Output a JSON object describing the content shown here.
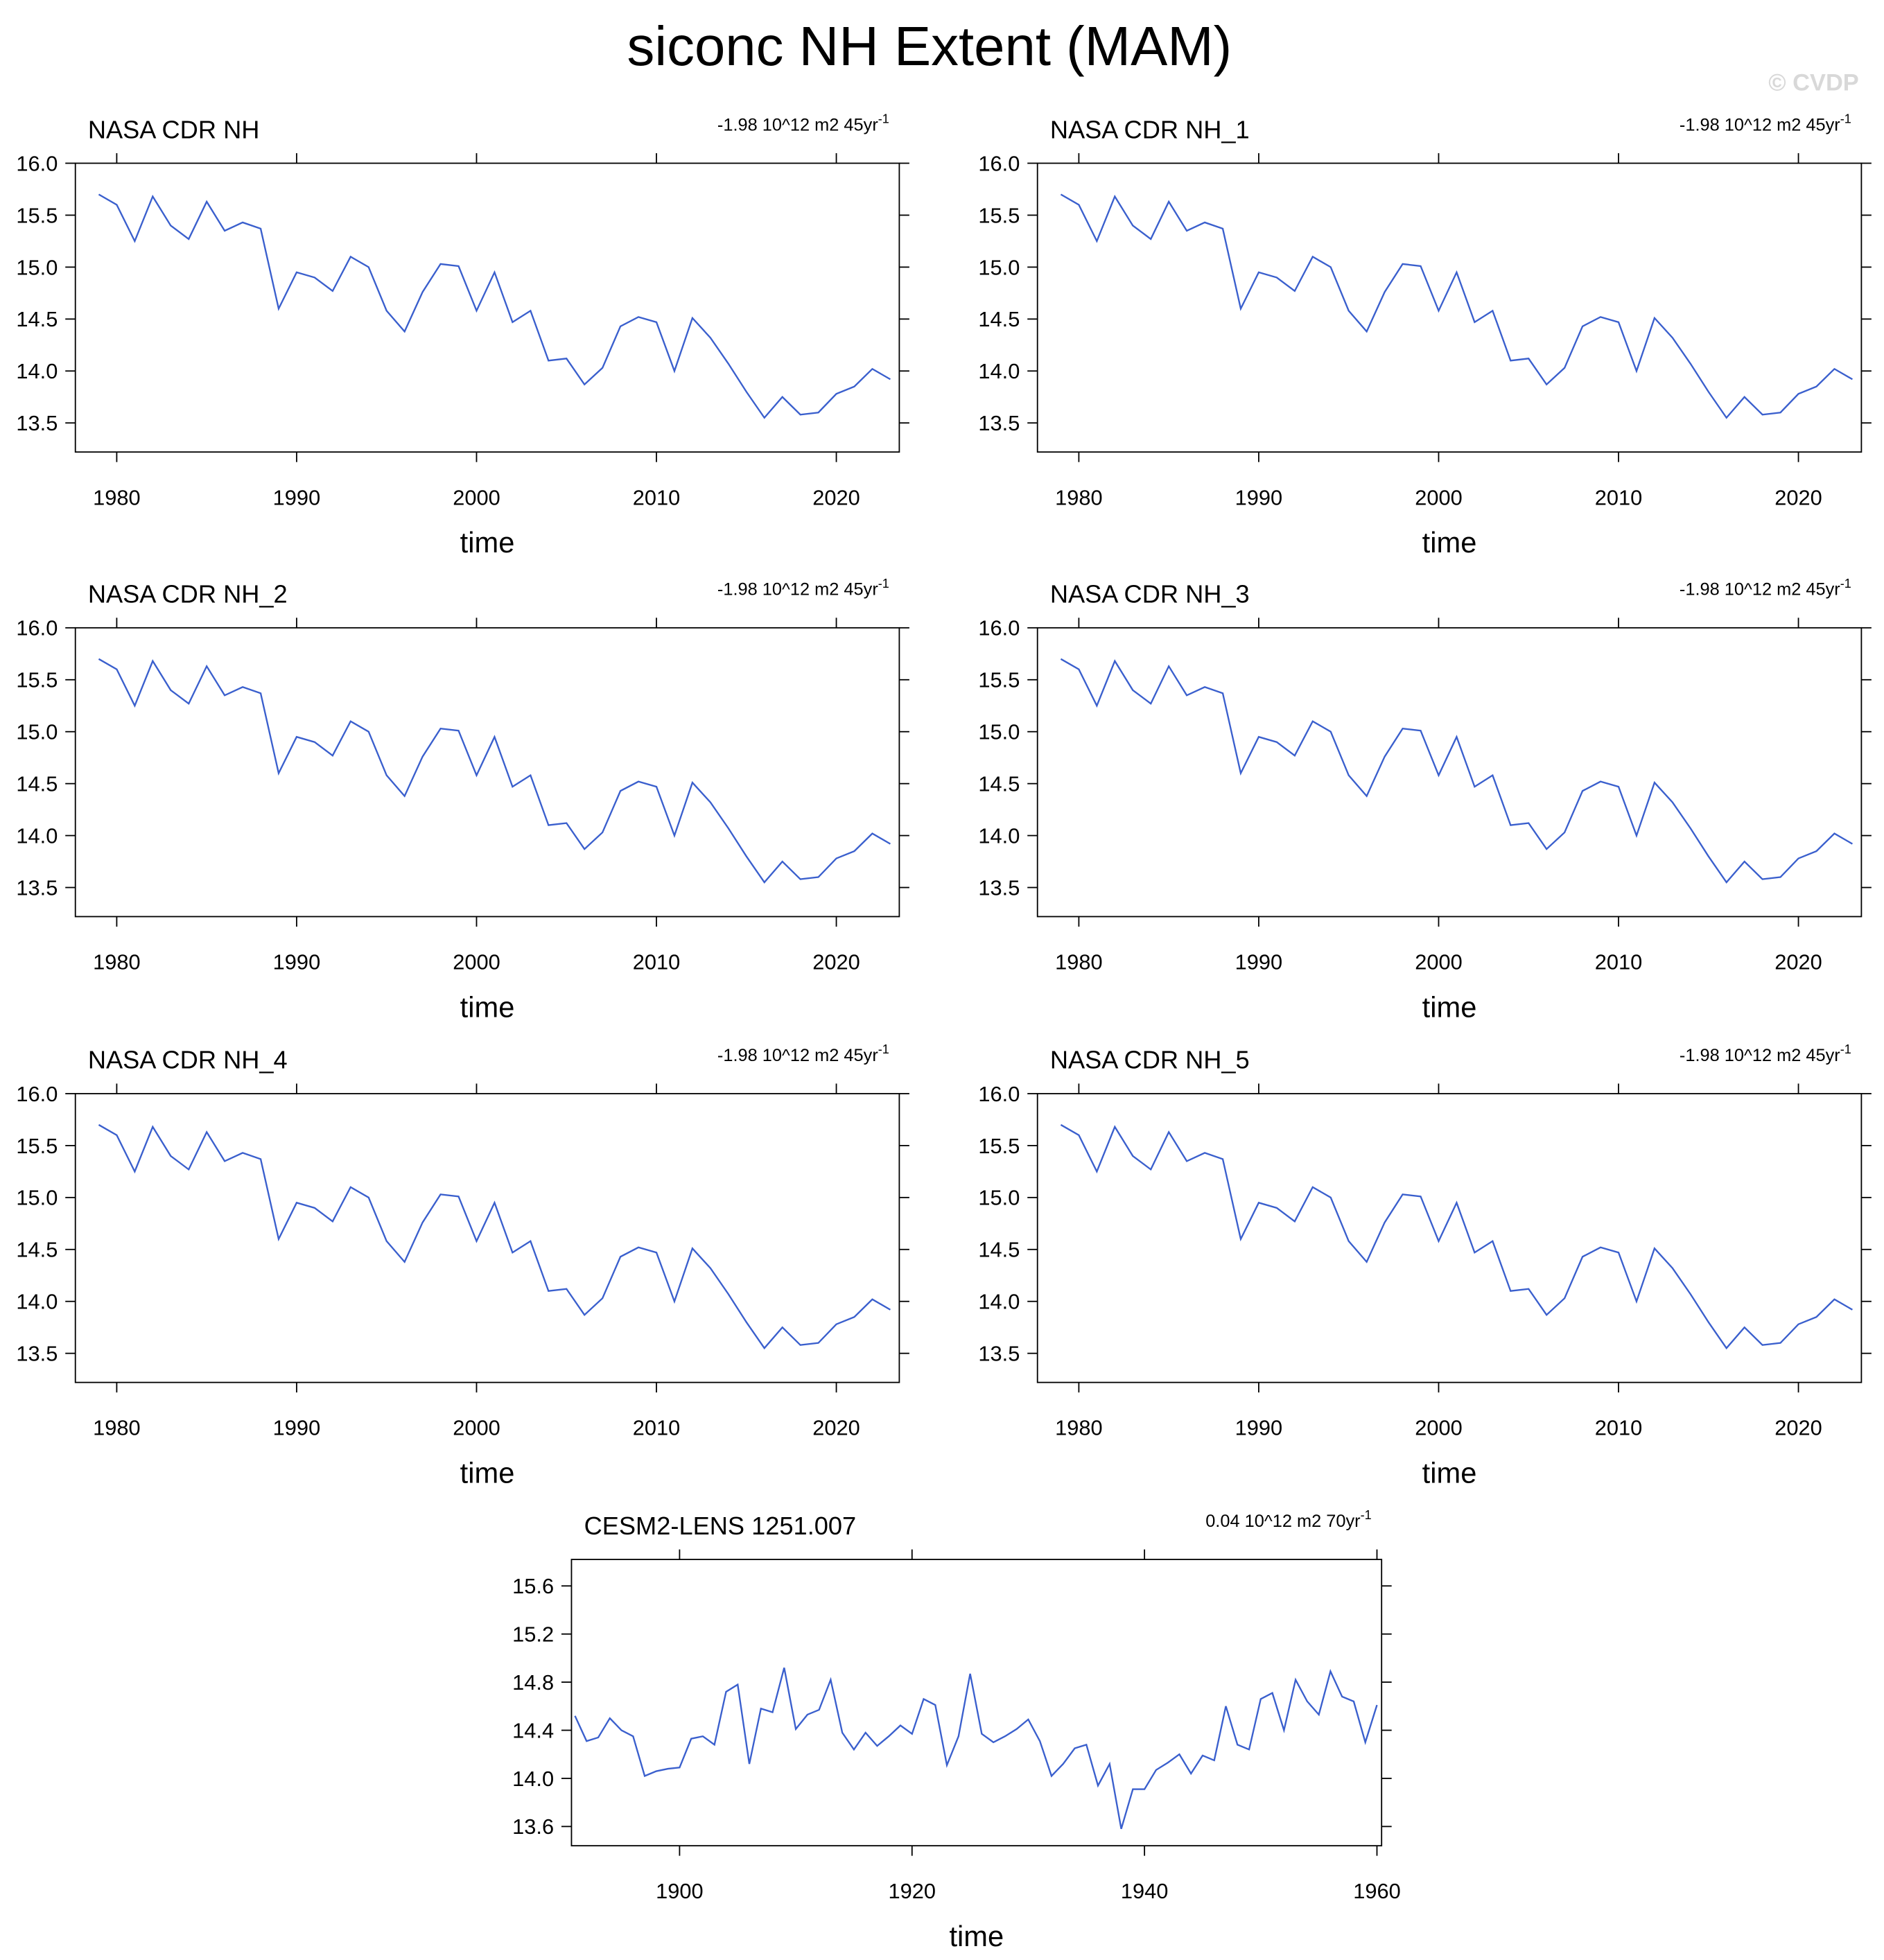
{
  "title": "siconc NH Extent (MAM)",
  "watermark": "© CVDP",
  "chart_data": [
    {
      "type": "line",
      "title": "NASA CDR NH",
      "annotation": "-1.98 10^12 m2 45yr",
      "annotation_sup": "-1",
      "x_label": "time",
      "color": "#3a5fcd",
      "x": [
        1979,
        1980,
        1981,
        1982,
        1983,
        1984,
        1985,
        1986,
        1987,
        1988,
        1989,
        1990,
        1991,
        1992,
        1993,
        1994,
        1995,
        1996,
        1997,
        1998,
        1999,
        2000,
        2001,
        2002,
        2003,
        2004,
        2005,
        2006,
        2007,
        2008,
        2009,
        2010,
        2011,
        2012,
        2013,
        2014,
        2015,
        2016,
        2017,
        2018,
        2019,
        2020,
        2021,
        2022,
        2023
      ],
      "values": [
        15.7,
        15.6,
        15.25,
        15.68,
        15.4,
        15.27,
        15.63,
        15.35,
        15.43,
        15.37,
        14.6,
        14.95,
        14.9,
        14.77,
        15.1,
        15.0,
        14.58,
        14.38,
        14.76,
        15.03,
        15.01,
        14.58,
        14.95,
        14.47,
        14.58,
        14.1,
        14.12,
        13.87,
        14.03,
        14.43,
        14.52,
        14.47,
        14.0,
        14.51,
        14.32,
        14.07,
        13.8,
        13.55,
        13.75,
        13.58,
        13.6,
        13.78,
        13.85,
        14.02,
        13.92
      ],
      "xlim": [
        1977.7,
        2023.5
      ],
      "xticks": [
        1980,
        1990,
        2000,
        2010,
        2020
      ],
      "ylim": [
        13.22,
        16.0
      ],
      "yticks": [
        13.5,
        {
          "value": 14,
          "label": "14.0"
        },
        14.5,
        {
          "value": 15,
          "label": "15.0"
        },
        15.5,
        {
          "value": 16,
          "label": "16.0"
        }
      ]
    },
    {
      "type": "line",
      "title": "NASA CDR NH_1",
      "annotation": "-1.98 10^12 m2 45yr",
      "annotation_sup": "-1",
      "x_label": "time",
      "color": "#3a5fcd",
      "x": [
        1979,
        1980,
        1981,
        1982,
        1983,
        1984,
        1985,
        1986,
        1987,
        1988,
        1989,
        1990,
        1991,
        1992,
        1993,
        1994,
        1995,
        1996,
        1997,
        1998,
        1999,
        2000,
        2001,
        2002,
        2003,
        2004,
        2005,
        2006,
        2007,
        2008,
        2009,
        2010,
        2011,
        2012,
        2013,
        2014,
        2015,
        2016,
        2017,
        2018,
        2019,
        2020,
        2021,
        2022,
        2023
      ],
      "values": [
        15.7,
        15.6,
        15.25,
        15.68,
        15.4,
        15.27,
        15.63,
        15.35,
        15.43,
        15.37,
        14.6,
        14.95,
        14.9,
        14.77,
        15.1,
        15.0,
        14.58,
        14.38,
        14.76,
        15.03,
        15.01,
        14.58,
        14.95,
        14.47,
        14.58,
        14.1,
        14.12,
        13.87,
        14.03,
        14.43,
        14.52,
        14.47,
        14.0,
        14.51,
        14.32,
        14.07,
        13.8,
        13.55,
        13.75,
        13.58,
        13.6,
        13.78,
        13.85,
        14.02,
        13.92
      ],
      "xlim": [
        1977.7,
        2023.5
      ],
      "xticks": [
        1980,
        1990,
        2000,
        2010,
        2020
      ],
      "ylim": [
        13.22,
        16.0
      ],
      "yticks": [
        13.5,
        {
          "value": 14,
          "label": "14.0"
        },
        14.5,
        {
          "value": 15,
          "label": "15.0"
        },
        15.5,
        {
          "value": 16,
          "label": "16.0"
        }
      ]
    },
    {
      "type": "line",
      "title": "NASA CDR NH_2",
      "annotation": "-1.98 10^12 m2 45yr",
      "annotation_sup": "-1",
      "x_label": "time",
      "color": "#3a5fcd",
      "x": [
        1979,
        1980,
        1981,
        1982,
        1983,
        1984,
        1985,
        1986,
        1987,
        1988,
        1989,
        1990,
        1991,
        1992,
        1993,
        1994,
        1995,
        1996,
        1997,
        1998,
        1999,
        2000,
        2001,
        2002,
        2003,
        2004,
        2005,
        2006,
        2007,
        2008,
        2009,
        2010,
        2011,
        2012,
        2013,
        2014,
        2015,
        2016,
        2017,
        2018,
        2019,
        2020,
        2021,
        2022,
        2023
      ],
      "values": [
        15.7,
        15.6,
        15.25,
        15.68,
        15.4,
        15.27,
        15.63,
        15.35,
        15.43,
        15.37,
        14.6,
        14.95,
        14.9,
        14.77,
        15.1,
        15.0,
        14.58,
        14.38,
        14.76,
        15.03,
        15.01,
        14.58,
        14.95,
        14.47,
        14.58,
        14.1,
        14.12,
        13.87,
        14.03,
        14.43,
        14.52,
        14.47,
        14.0,
        14.51,
        14.32,
        14.07,
        13.8,
        13.55,
        13.75,
        13.58,
        13.6,
        13.78,
        13.85,
        14.02,
        13.92
      ],
      "xlim": [
        1977.7,
        2023.5
      ],
      "xticks": [
        1980,
        1990,
        2000,
        2010,
        2020
      ],
      "ylim": [
        13.22,
        16.0
      ],
      "yticks": [
        13.5,
        {
          "value": 14,
          "label": "14.0"
        },
        14.5,
        {
          "value": 15,
          "label": "15.0"
        },
        15.5,
        {
          "value": 16,
          "label": "16.0"
        }
      ]
    },
    {
      "type": "line",
      "title": "NASA CDR NH_3",
      "annotation": "-1.98 10^12 m2 45yr",
      "annotation_sup": "-1",
      "x_label": "time",
      "color": "#3a5fcd",
      "x": [
        1979,
        1980,
        1981,
        1982,
        1983,
        1984,
        1985,
        1986,
        1987,
        1988,
        1989,
        1990,
        1991,
        1992,
        1993,
        1994,
        1995,
        1996,
        1997,
        1998,
        1999,
        2000,
        2001,
        2002,
        2003,
        2004,
        2005,
        2006,
        2007,
        2008,
        2009,
        2010,
        2011,
        2012,
        2013,
        2014,
        2015,
        2016,
        2017,
        2018,
        2019,
        2020,
        2021,
        2022,
        2023
      ],
      "values": [
        15.7,
        15.6,
        15.25,
        15.68,
        15.4,
        15.27,
        15.63,
        15.35,
        15.43,
        15.37,
        14.6,
        14.95,
        14.9,
        14.77,
        15.1,
        15.0,
        14.58,
        14.38,
        14.76,
        15.03,
        15.01,
        14.58,
        14.95,
        14.47,
        14.58,
        14.1,
        14.12,
        13.87,
        14.03,
        14.43,
        14.52,
        14.47,
        14.0,
        14.51,
        14.32,
        14.07,
        13.8,
        13.55,
        13.75,
        13.58,
        13.6,
        13.78,
        13.85,
        14.02,
        13.92
      ],
      "xlim": [
        1977.7,
        2023.5
      ],
      "xticks": [
        1980,
        1990,
        2000,
        2010,
        2020
      ],
      "ylim": [
        13.22,
        16.0
      ],
      "yticks": [
        13.5,
        {
          "value": 14,
          "label": "14.0"
        },
        14.5,
        {
          "value": 15,
          "label": "15.0"
        },
        15.5,
        {
          "value": 16,
          "label": "16.0"
        }
      ]
    },
    {
      "type": "line",
      "title": "NASA CDR NH_4",
      "annotation": "-1.98 10^12 m2 45yr",
      "annotation_sup": "-1",
      "x_label": "time",
      "color": "#3a5fcd",
      "x": [
        1979,
        1980,
        1981,
        1982,
        1983,
        1984,
        1985,
        1986,
        1987,
        1988,
        1989,
        1990,
        1991,
        1992,
        1993,
        1994,
        1995,
        1996,
        1997,
        1998,
        1999,
        2000,
        2001,
        2002,
        2003,
        2004,
        2005,
        2006,
        2007,
        2008,
        2009,
        2010,
        2011,
        2012,
        2013,
        2014,
        2015,
        2016,
        2017,
        2018,
        2019,
        2020,
        2021,
        2022,
        2023
      ],
      "values": [
        15.7,
        15.6,
        15.25,
        15.68,
        15.4,
        15.27,
        15.63,
        15.35,
        15.43,
        15.37,
        14.6,
        14.95,
        14.9,
        14.77,
        15.1,
        15.0,
        14.58,
        14.38,
        14.76,
        15.03,
        15.01,
        14.58,
        14.95,
        14.47,
        14.58,
        14.1,
        14.12,
        13.87,
        14.03,
        14.43,
        14.52,
        14.47,
        14.0,
        14.51,
        14.32,
        14.07,
        13.8,
        13.55,
        13.75,
        13.58,
        13.6,
        13.78,
        13.85,
        14.02,
        13.92
      ],
      "xlim": [
        1977.7,
        2023.5
      ],
      "xticks": [
        1980,
        1990,
        2000,
        2010,
        2020
      ],
      "ylim": [
        13.22,
        16.0
      ],
      "yticks": [
        13.5,
        {
          "value": 14,
          "label": "14.0"
        },
        14.5,
        {
          "value": 15,
          "label": "15.0"
        },
        15.5,
        {
          "value": 16,
          "label": "16.0"
        }
      ]
    },
    {
      "type": "line",
      "title": "NASA CDR NH_5",
      "annotation": "-1.98 10^12 m2 45yr",
      "annotation_sup": "-1",
      "x_label": "time",
      "color": "#3a5fcd",
      "x": [
        1979,
        1980,
        1981,
        1982,
        1983,
        1984,
        1985,
        1986,
        1987,
        1988,
        1989,
        1990,
        1991,
        1992,
        1993,
        1994,
        1995,
        1996,
        1997,
        1998,
        1999,
        2000,
        2001,
        2002,
        2003,
        2004,
        2005,
        2006,
        2007,
        2008,
        2009,
        2010,
        2011,
        2012,
        2013,
        2014,
        2015,
        2016,
        2017,
        2018,
        2019,
        2020,
        2021,
        2022,
        2023
      ],
      "values": [
        15.7,
        15.6,
        15.25,
        15.68,
        15.4,
        15.27,
        15.63,
        15.35,
        15.43,
        15.37,
        14.6,
        14.95,
        14.9,
        14.77,
        15.1,
        15.0,
        14.58,
        14.38,
        14.76,
        15.03,
        15.01,
        14.58,
        14.95,
        14.47,
        14.58,
        14.1,
        14.12,
        13.87,
        14.03,
        14.43,
        14.52,
        14.47,
        14.0,
        14.51,
        14.32,
        14.07,
        13.8,
        13.55,
        13.75,
        13.58,
        13.6,
        13.78,
        13.85,
        14.02,
        13.92
      ],
      "xlim": [
        1977.7,
        2023.5
      ],
      "xticks": [
        1980,
        1990,
        2000,
        2010,
        2020
      ],
      "ylim": [
        13.22,
        16.0
      ],
      "yticks": [
        13.5,
        {
          "value": 14,
          "label": "14.0"
        },
        14.5,
        {
          "value": 15,
          "label": "15.0"
        },
        15.5,
        {
          "value": 16,
          "label": "16.0"
        }
      ]
    },
    {
      "type": "line",
      "title": "CESM2-LENS 1251.007",
      "annotation": "0.04 10^12 m2 70yr",
      "annotation_sup": "-1",
      "x_label": "time",
      "color": "#3a5fcd",
      "x": [
        1891,
        1892,
        1893,
        1894,
        1895,
        1896,
        1897,
        1898,
        1899,
        1900,
        1901,
        1902,
        1903,
        1904,
        1905,
        1906,
        1907,
        1908,
        1909,
        1910,
        1911,
        1912,
        1913,
        1914,
        1915,
        1916,
        1917,
        1918,
        1919,
        1920,
        1921,
        1922,
        1923,
        1924,
        1925,
        1926,
        1927,
        1928,
        1929,
        1930,
        1931,
        1932,
        1933,
        1934,
        1935,
        1936,
        1937,
        1938,
        1939,
        1940,
        1941,
        1942,
        1943,
        1944,
        1945,
        1946,
        1947,
        1948,
        1949,
        1950,
        1951,
        1952,
        1953,
        1954,
        1955,
        1956,
        1957,
        1958,
        1959,
        1960
      ],
      "values": [
        14.52,
        14.31,
        14.34,
        14.5,
        14.4,
        14.35,
        14.02,
        14.06,
        14.08,
        14.09,
        14.33,
        14.35,
        14.28,
        14.72,
        14.78,
        14.12,
        14.58,
        14.55,
        14.92,
        14.41,
        14.53,
        14.57,
        14.82,
        14.38,
        14.24,
        14.38,
        14.27,
        14.35,
        14.44,
        14.37,
        14.66,
        14.61,
        14.11,
        14.35,
        14.87,
        14.37,
        14.3,
        14.35,
        14.41,
        14.49,
        14.31,
        14.02,
        14.12,
        14.25,
        14.28,
        13.94,
        14.12,
        13.58,
        13.91,
        13.91,
        14.07,
        14.13,
        14.2,
        14.04,
        14.19,
        14.15,
        14.6,
        14.28,
        14.24,
        14.66,
        14.71,
        14.4,
        14.82,
        14.64,
        14.53,
        14.89,
        14.68,
        14.64,
        14.3,
        14.61
      ],
      "xlim": [
        1890.7,
        1960.4
      ],
      "xticks": [
        1900,
        1920,
        1940,
        1960
      ],
      "ylim": [
        13.44,
        15.82
      ],
      "yticks": [
        13.6,
        {
          "value": 14,
          "label": "14.0"
        },
        14.4,
        14.8,
        15.2,
        15.6
      ]
    }
  ]
}
